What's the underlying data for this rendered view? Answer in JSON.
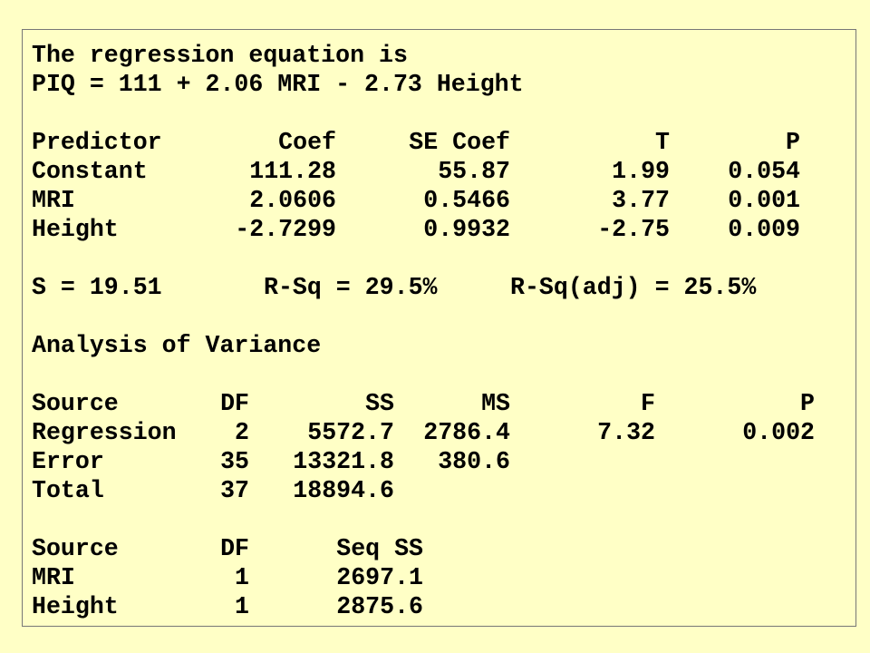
{
  "equation": {
    "title": "The regression equation is",
    "formula": "PIQ = 111 + 2.06 MRI - 2.73 Height"
  },
  "coefficients": {
    "header": [
      "Predictor",
      "Coef",
      "SE Coef",
      "T",
      "P"
    ],
    "rows": [
      [
        "Constant",
        "111.28",
        "55.87",
        "1.99",
        "0.054"
      ],
      [
        "MRI",
        "2.0606",
        "0.5466",
        "3.77",
        "0.001"
      ],
      [
        "Height",
        "-2.7299",
        "0.9932",
        "-2.75",
        "0.009"
      ]
    ]
  },
  "fit": [
    "S = 19.51",
    "R-Sq = 29.5%",
    "R-Sq(adj) = 25.5%"
  ],
  "anova_title": "Analysis of Variance",
  "anova": {
    "header": [
      "Source",
      "DF",
      "SS",
      "MS",
      "F",
      "P"
    ],
    "rows": [
      [
        "Regression",
        "2",
        "5572.7",
        "2786.4",
        "7.32",
        "0.002"
      ],
      [
        "Error",
        "35",
        "13321.8",
        "380.6"
      ],
      [
        "Total",
        "37",
        "18894.6"
      ]
    ]
  },
  "sequential": {
    "header": [
      "Source",
      "DF",
      "Seq SS"
    ],
    "rows": [
      [
        "MRI",
        "1",
        "2697.1"
      ],
      [
        "Height",
        "1",
        "2875.6"
      ]
    ]
  }
}
